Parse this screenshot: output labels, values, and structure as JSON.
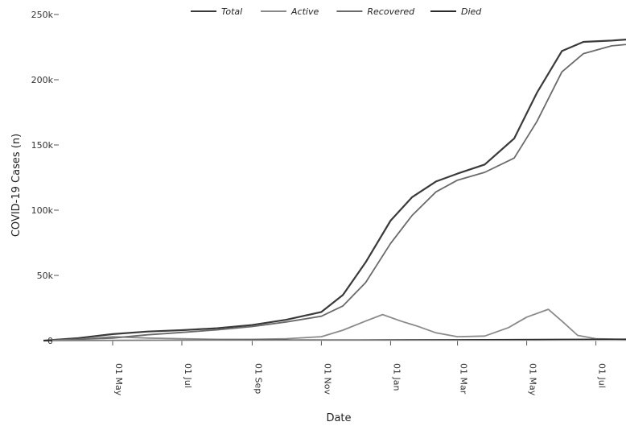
{
  "chart_data": {
    "type": "line",
    "xlabel": "Date",
    "ylabel": "COVID-19 Cases (n)",
    "x_ticks": [
      "01 May",
      "01 Jul",
      "01 Sep",
      "01 Nov",
      "01 Jan",
      "01 Mar",
      "01 May",
      "01 Jul"
    ],
    "y_ticks": [
      "0",
      "50k",
      "100k",
      "150k",
      "200k",
      "250k"
    ],
    "ylim": [
      0,
      250000
    ],
    "grid": false,
    "legend_position": "top",
    "series": [
      {
        "name": "Total",
        "color": "#3a3a3a",
        "points": [
          [
            "2020-03-01",
            0
          ],
          [
            "2020-04-01",
            2000
          ],
          [
            "2020-05-01",
            5000
          ],
          [
            "2020-06-01",
            7000
          ],
          [
            "2020-07-01",
            8000
          ],
          [
            "2020-08-01",
            9500
          ],
          [
            "2020-09-01",
            12000
          ],
          [
            "2020-10-01",
            16000
          ],
          [
            "2020-11-01",
            22000
          ],
          [
            "2020-11-20",
            35000
          ],
          [
            "2020-12-10",
            60000
          ],
          [
            "2021-01-01",
            92000
          ],
          [
            "2021-01-20",
            110000
          ],
          [
            "2021-02-10",
            122000
          ],
          [
            "2021-03-01",
            128000
          ],
          [
            "2021-03-25",
            135000
          ],
          [
            "2021-04-20",
            155000
          ],
          [
            "2021-05-10",
            190000
          ],
          [
            "2021-06-01",
            222000
          ],
          [
            "2021-06-20",
            229000
          ],
          [
            "2021-07-15",
            230000
          ],
          [
            "2021-08-15",
            232000
          ],
          [
            "2021-09-05",
            236000
          ]
        ]
      },
      {
        "name": "Active",
        "color": "#8a8a8a",
        "points": [
          [
            "2020-03-01",
            0
          ],
          [
            "2020-04-01",
            1000
          ],
          [
            "2020-05-01",
            3000
          ],
          [
            "2020-06-01",
            2000
          ],
          [
            "2020-07-01",
            1500
          ],
          [
            "2020-08-01",
            1000
          ],
          [
            "2020-09-01",
            1000
          ],
          [
            "2020-10-01",
            1500
          ],
          [
            "2020-11-01",
            3000
          ],
          [
            "2020-11-20",
            8000
          ],
          [
            "2020-12-10",
            15000
          ],
          [
            "2020-12-25",
            20000
          ],
          [
            "2021-01-10",
            15000
          ],
          [
            "2021-01-25",
            11000
          ],
          [
            "2021-02-10",
            6000
          ],
          [
            "2021-03-01",
            3000
          ],
          [
            "2021-03-25",
            3500
          ],
          [
            "2021-04-15",
            10000
          ],
          [
            "2021-05-01",
            18000
          ],
          [
            "2021-05-20",
            24000
          ],
          [
            "2021-06-01",
            15000
          ],
          [
            "2021-06-15",
            4000
          ],
          [
            "2021-07-01",
            1500
          ],
          [
            "2021-08-01",
            800
          ],
          [
            "2021-09-05",
            2500
          ]
        ]
      },
      {
        "name": "Recovered",
        "color": "#6a6a6a",
        "points": [
          [
            "2020-03-01",
            0
          ],
          [
            "2020-04-01",
            1000
          ],
          [
            "2020-05-01",
            2000
          ],
          [
            "2020-06-01",
            4500
          ],
          [
            "2020-07-01",
            6300
          ],
          [
            "2020-08-01",
            8300
          ],
          [
            "2020-09-01",
            10800
          ],
          [
            "2020-10-01",
            14300
          ],
          [
            "2020-11-01",
            18700
          ],
          [
            "2020-11-20",
            26600
          ],
          [
            "2020-12-10",
            44500
          ],
          [
            "2021-01-01",
            74500
          ],
          [
            "2021-01-20",
            96000
          ],
          [
            "2021-02-10",
            114000
          ],
          [
            "2021-03-01",
            123000
          ],
          [
            "2021-03-25",
            129000
          ],
          [
            "2021-04-20",
            140000
          ],
          [
            "2021-05-10",
            168000
          ],
          [
            "2021-06-01",
            206000
          ],
          [
            "2021-06-20",
            220000
          ],
          [
            "2021-07-15",
            226000
          ],
          [
            "2021-08-15",
            228500
          ],
          [
            "2021-09-05",
            230000
          ]
        ]
      },
      {
        "name": "Died",
        "color": "#2a2a2a",
        "points": [
          [
            "2020-03-01",
            0
          ],
          [
            "2020-06-01",
            200
          ],
          [
            "2020-09-01",
            300
          ],
          [
            "2020-12-01",
            400
          ],
          [
            "2021-03-01",
            600
          ],
          [
            "2021-06-01",
            900
          ],
          [
            "2021-09-05",
            1100
          ]
        ]
      }
    ]
  }
}
